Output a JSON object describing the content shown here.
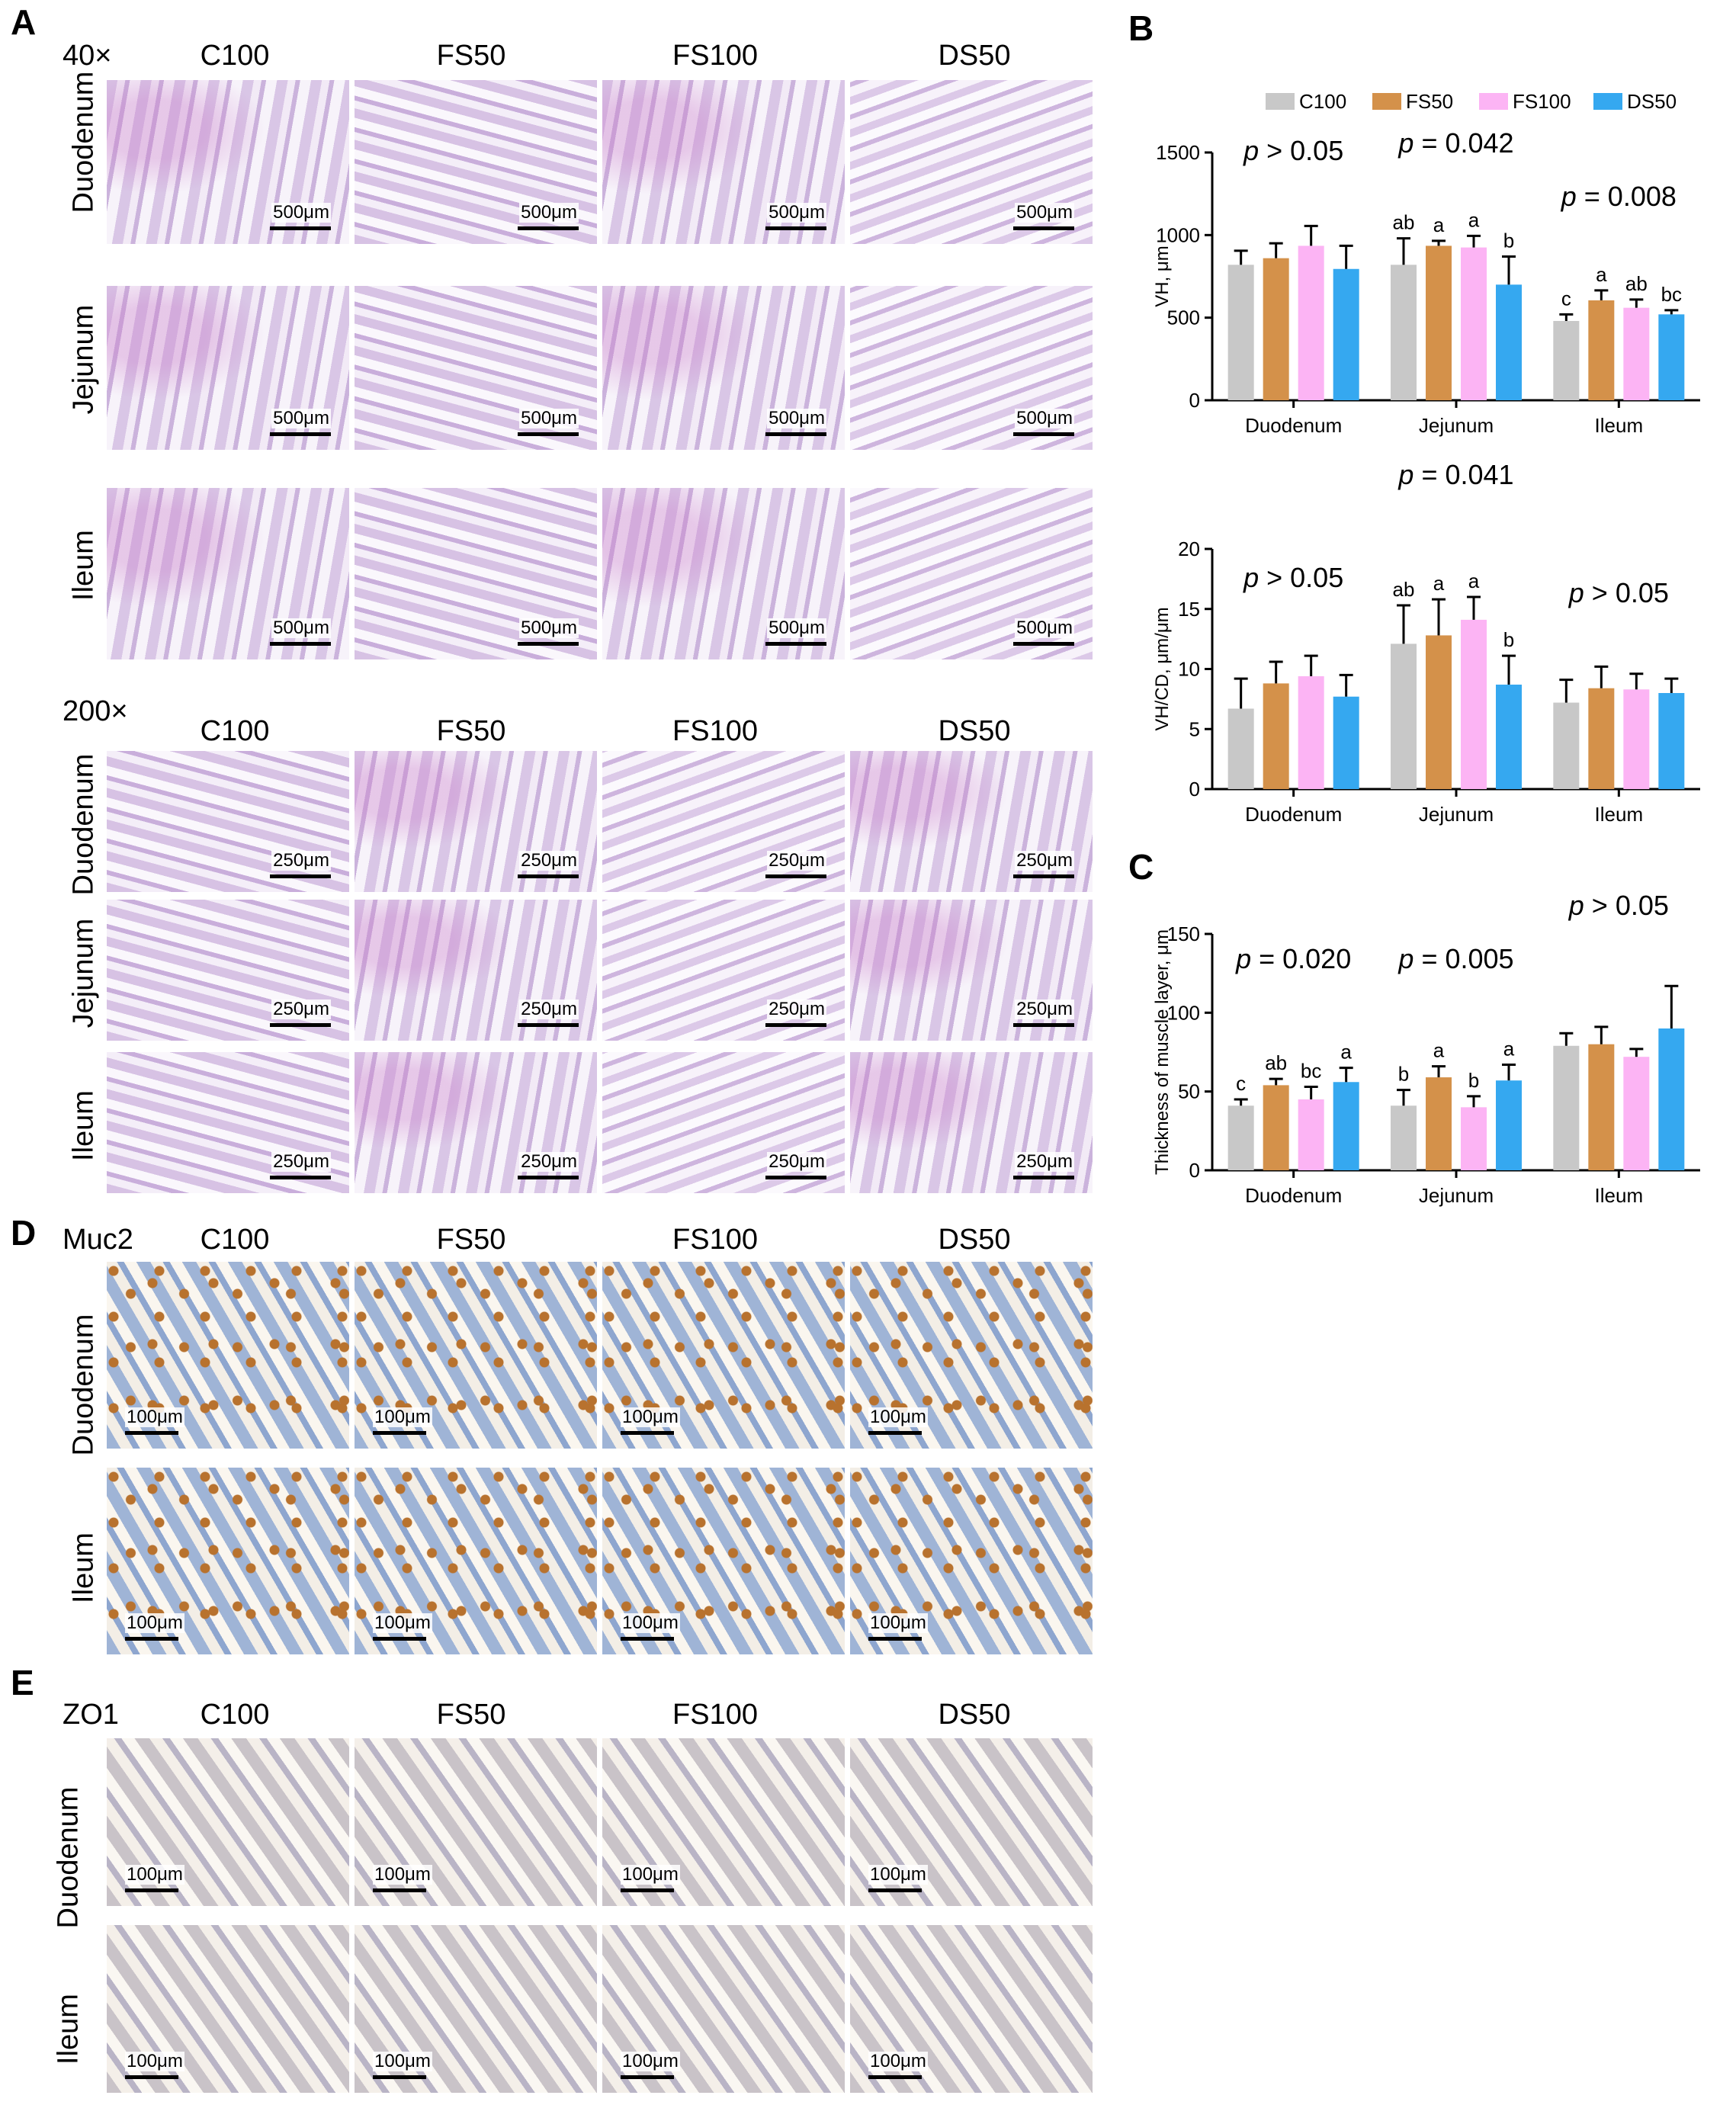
{
  "panels": {
    "A": "A",
    "B": "B",
    "C": "C",
    "D": "D",
    "E": "E"
  },
  "groups": [
    "C100",
    "FS50",
    "FS100",
    "DS50"
  ],
  "tissues": {
    "duodenum": "Duodenum",
    "jejunum": "Jejunum",
    "ileum": "Ileum"
  },
  "panel_a": {
    "mag40": "40×",
    "mag200": "200×",
    "scale40": "500μm",
    "scale200": "250μm"
  },
  "panel_d": {
    "stain": "Muc2",
    "scale": "100μm"
  },
  "panel_e": {
    "stain": "ZO1",
    "scale": "100μm"
  },
  "colors": {
    "C100": "#c8c8c8",
    "FS50": "#d4914a",
    "FS100": "#fcb4f4",
    "DS50": "#35a8f0"
  },
  "chart_data": [
    {
      "type": "bar",
      "ylabel": "VH, μm",
      "ylim": [
        0,
        1500
      ],
      "yticks": [
        0,
        500,
        1000,
        1500
      ],
      "categories": [
        "Duodenum",
        "Jejunum",
        "Ileum"
      ],
      "legend": "top",
      "series": [
        {
          "name": "C100",
          "values": [
            820,
            820,
            480
          ],
          "err": [
            85,
            160,
            40
          ]
        },
        {
          "name": "FS50",
          "values": [
            860,
            935,
            605
          ],
          "err": [
            90,
            30,
            60
          ]
        },
        {
          "name": "FS100",
          "values": [
            935,
            925,
            560
          ],
          "err": [
            120,
            70,
            50
          ]
        },
        {
          "name": "DS50",
          "values": [
            795,
            700,
            520
          ],
          "err": [
            140,
            170,
            25
          ]
        }
      ],
      "pvalues": [
        "p > 0.05",
        "p = 0.042",
        "p = 0.008"
      ],
      "letters": [
        [
          "",
          "",
          "",
          ""
        ],
        [
          "ab",
          "a",
          "a",
          "b"
        ],
        [
          "c",
          "a",
          "ab",
          "bc"
        ]
      ]
    },
    {
      "type": "bar",
      "ylabel": "VH/CD, μm/μm",
      "ylim": [
        0,
        20
      ],
      "yticks": [
        0,
        5,
        10,
        15,
        20
      ],
      "categories": [
        "Duodenum",
        "Jejunum",
        "Ileum"
      ],
      "series": [
        {
          "name": "C100",
          "values": [
            6.7,
            12.1,
            7.2
          ],
          "err": [
            2.5,
            3.2,
            1.9
          ]
        },
        {
          "name": "FS50",
          "values": [
            8.8,
            12.8,
            8.4
          ],
          "err": [
            1.8,
            3.0,
            1.8
          ]
        },
        {
          "name": "FS100",
          "values": [
            9.4,
            14.1,
            8.3
          ],
          "err": [
            1.7,
            1.9,
            1.3
          ]
        },
        {
          "name": "DS50",
          "values": [
            7.7,
            8.7,
            8.0
          ],
          "err": [
            1.8,
            2.4,
            1.2
          ]
        }
      ],
      "pvalues": [
        "p > 0.05",
        "p = 0.041",
        "p > 0.05"
      ],
      "letters": [
        [
          "",
          "",
          "",
          ""
        ],
        [
          "ab",
          "a",
          "a",
          "b"
        ],
        [
          "",
          "",
          "",
          ""
        ]
      ]
    },
    {
      "type": "bar",
      "ylabel": "Thickness of muscle layer, μm",
      "ylim": [
        0,
        150
      ],
      "yticks": [
        0,
        50,
        100,
        150
      ],
      "categories": [
        "Duodenum",
        "Jejunum",
        "Ileum"
      ],
      "series": [
        {
          "name": "C100",
          "values": [
            41,
            41,
            79
          ],
          "err": [
            4,
            10,
            8
          ]
        },
        {
          "name": "FS50",
          "values": [
            54,
            59,
            80
          ],
          "err": [
            4,
            7,
            11
          ]
        },
        {
          "name": "FS100",
          "values": [
            45,
            40,
            72
          ],
          "err": [
            8,
            7,
            5
          ]
        },
        {
          "name": "DS50",
          "values": [
            56,
            57,
            90
          ],
          "err": [
            9,
            10,
            27
          ]
        }
      ],
      "pvalues": [
        "p = 0.020",
        "p = 0.005",
        "p > 0.05"
      ],
      "letters": [
        [
          "c",
          "ab",
          "bc",
          "a"
        ],
        [
          "b",
          "a",
          "b",
          "a"
        ],
        [
          "",
          "",
          "",
          ""
        ]
      ]
    }
  ]
}
